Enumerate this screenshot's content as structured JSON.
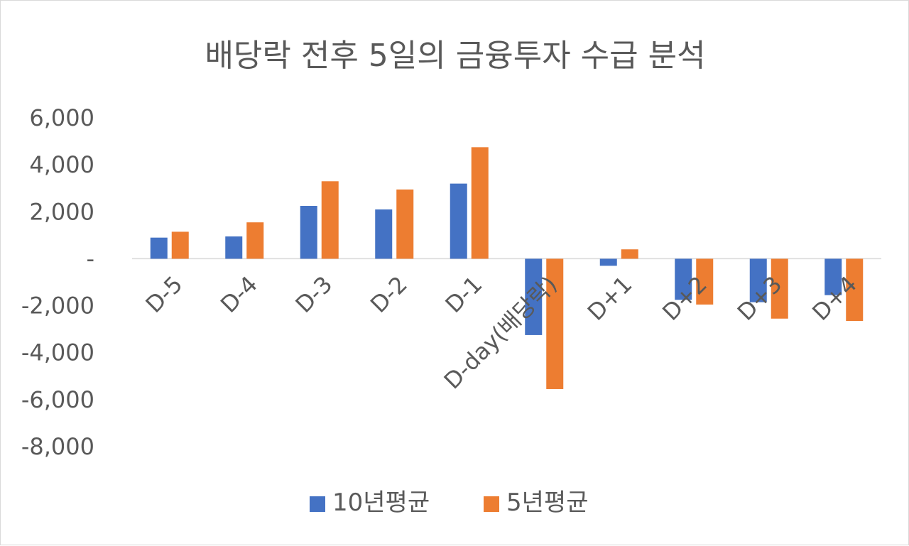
{
  "chart_data": {
    "type": "bar",
    "title": "배당락 전후 5일의 금융투자 수급 분석",
    "categories": [
      "D-5",
      "D-4",
      "D-3",
      "D-2",
      "D-1",
      "D-day(배당락)",
      "D+1",
      "D+2",
      "D+3",
      "D+4"
    ],
    "series": [
      {
        "name": "10년평균",
        "color": "#4472C4",
        "values": [
          900,
          950,
          2250,
          2100,
          3200,
          -3250,
          -300,
          -1750,
          -1850,
          -1550
        ]
      },
      {
        "name": "5년평균",
        "color": "#ED7D31",
        "values": [
          1150,
          1550,
          3300,
          2950,
          4750,
          -5550,
          400,
          -1950,
          -2550,
          -2650
        ]
      }
    ],
    "ylim": [
      -8000,
      6000
    ],
    "yticks": [
      {
        "value": 6000,
        "label": "6,000"
      },
      {
        "value": 4000,
        "label": "4,000"
      },
      {
        "value": 2000,
        "label": "2,000"
      },
      {
        "value": 0,
        "label": "-"
      },
      {
        "value": -2000,
        "label": "-2,000"
      },
      {
        "value": -4000,
        "label": "-4,000"
      },
      {
        "value": -6000,
        "label": "-6,000"
      },
      {
        "value": -8000,
        "label": "-8,000"
      }
    ],
    "grid": false,
    "legend": "bottom"
  }
}
